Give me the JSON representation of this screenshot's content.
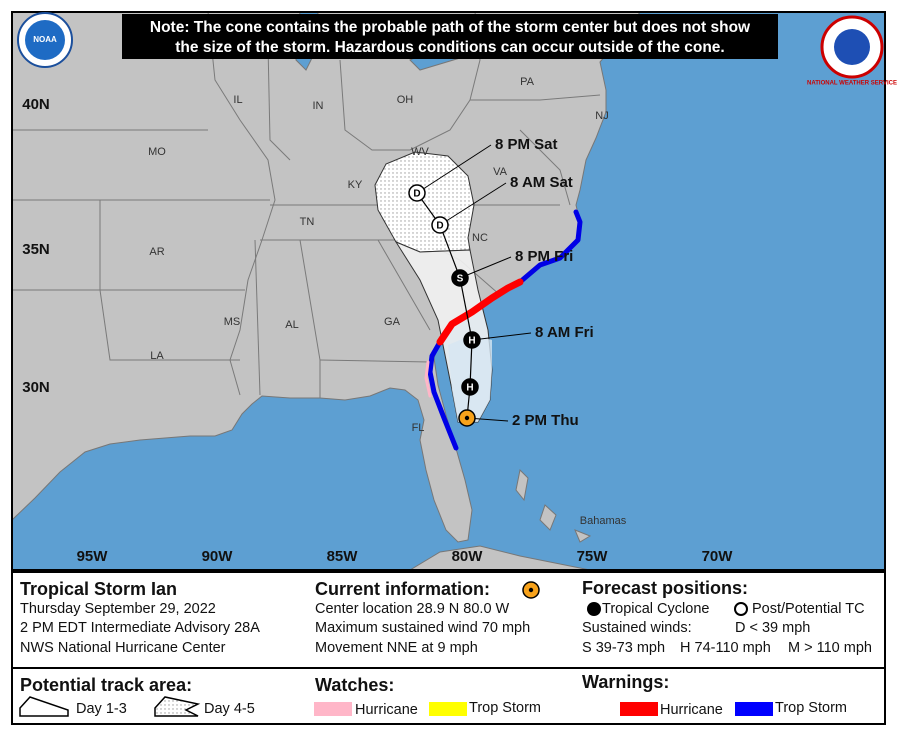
{
  "header": {
    "note_lines": [
      "Note: The cone contains the probable path of the storm center but does not show",
      "the size of the storm. Hazardous conditions can occur outside of the cone."
    ],
    "logos": [
      "NOAA",
      "NATIONAL WEATHER SERVICE"
    ]
  },
  "map": {
    "lat_labels": [
      "40N",
      "35N",
      "30N"
    ],
    "lon_labels": [
      "95W",
      "90W",
      "85W",
      "80W",
      "75W",
      "70W"
    ],
    "place_labels": [
      "IL",
      "IN",
      "OH",
      "PA",
      "NJ",
      "MO",
      "KY",
      "WV",
      "VA",
      "TN",
      "NC",
      "AR",
      "MS",
      "AL",
      "GA",
      "LA",
      "FL",
      "Bahamas"
    ],
    "forecast_points": [
      {
        "label": "2 PM Thu"
      },
      {
        "symbol": "H"
      },
      {
        "symbol": "H",
        "label": "8 AM Fri"
      },
      {
        "symbol": "S",
        "label": "8 PM Fri"
      },
      {
        "symbol": "D",
        "label": "8 AM Sat"
      },
      {
        "symbol": "D",
        "label": "8 PM Sat"
      }
    ]
  },
  "legend": {
    "storm": {
      "title": "Tropical Storm Ian",
      "lines": [
        "Thursday September 29, 2022",
        "2 PM EDT Intermediate Advisory 28A",
        "NWS National Hurricane Center"
      ]
    },
    "current": {
      "title": "Current information:",
      "lines": [
        "Center location 28.9 N 80.0 W",
        "Maximum sustained wind 70 mph",
        "Movement NNE at 9 mph"
      ]
    },
    "forecast": {
      "title": "Forecast positions:",
      "tc": "Tropical Cyclone",
      "post": "Post/Potential TC",
      "winds_title": "Sustained winds:",
      "d": "D < 39 mph",
      "s": "S 39-73 mph",
      "h": "H 74-110 mph",
      "m": "M > 110 mph"
    },
    "track": {
      "title": "Potential track area:",
      "day13": "Day 1-3",
      "day45": "Day 4-5"
    },
    "watches": {
      "title": "Watches:",
      "hurricane": "Hurricane",
      "trop_storm": "Trop Storm"
    },
    "warnings": {
      "title": "Warnings:",
      "hurricane": "Hurricane",
      "trop_storm": "Trop Storm"
    }
  }
}
